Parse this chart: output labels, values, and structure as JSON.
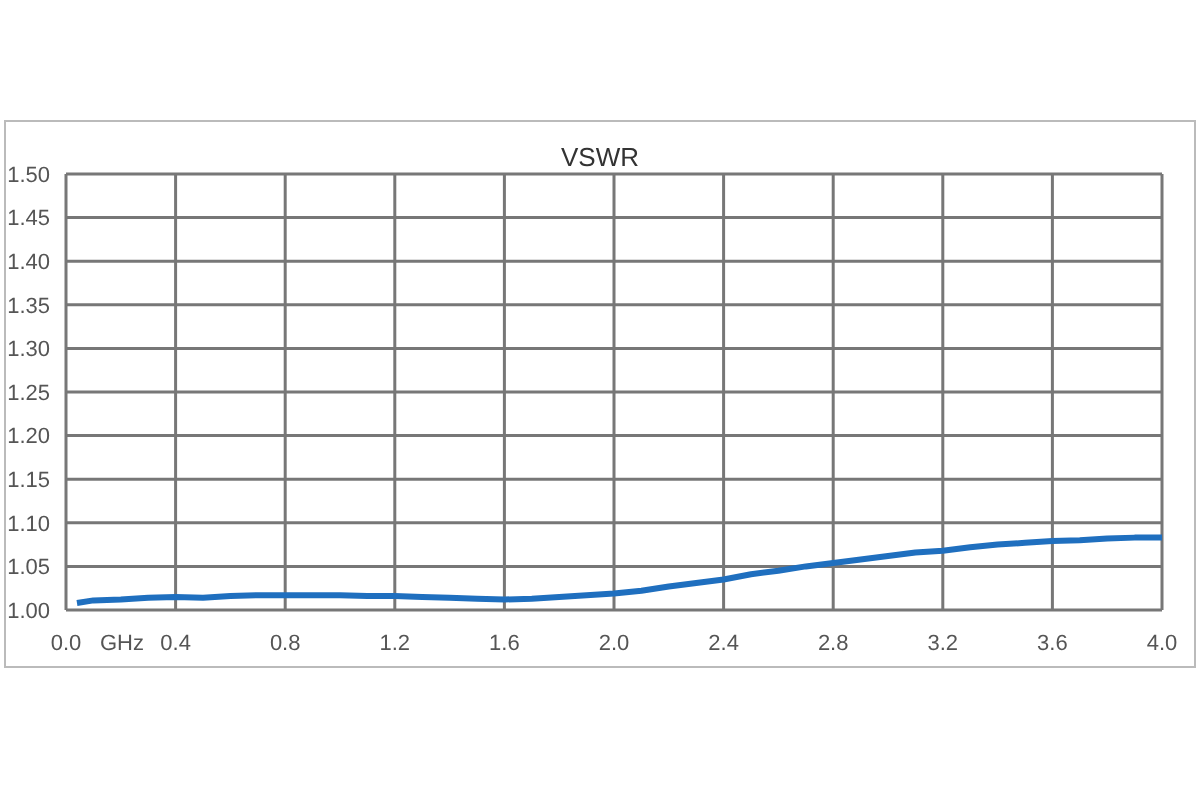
{
  "chart_data": {
    "type": "line",
    "title": "VSWR",
    "xlabel": "GHz",
    "x": [
      0.04,
      0.1,
      0.2,
      0.3,
      0.4,
      0.5,
      0.6,
      0.7,
      0.8,
      0.9,
      1.0,
      1.1,
      1.2,
      1.3,
      1.4,
      1.5,
      1.6,
      1.7,
      1.8,
      1.9,
      2.0,
      2.1,
      2.2,
      2.3,
      2.4,
      2.5,
      2.6,
      2.7,
      2.8,
      2.9,
      3.0,
      3.1,
      3.2,
      3.3,
      3.4,
      3.5,
      3.6,
      3.7,
      3.8,
      3.9,
      4.0
    ],
    "series": [
      {
        "color": "#1f6fbf",
        "values": [
          1.008,
          1.011,
          1.012,
          1.014,
          1.015,
          1.014,
          1.016,
          1.017,
          1.017,
          1.017,
          1.017,
          1.016,
          1.016,
          1.015,
          1.014,
          1.013,
          1.012,
          1.013,
          1.015,
          1.017,
          1.019,
          1.022,
          1.027,
          1.031,
          1.035,
          1.041,
          1.045,
          1.05,
          1.054,
          1.058,
          1.062,
          1.066,
          1.068,
          1.072,
          1.075,
          1.077,
          1.079,
          1.08,
          1.082,
          1.083,
          1.083
        ]
      }
    ],
    "xlim": [
      0,
      4
    ],
    "xticks": [
      {
        "value": 0,
        "label": "0.0"
      },
      0.4,
      0.8,
      1.2,
      1.6,
      {
        "value": 2,
        "label": "2.0"
      },
      2.4,
      2.8,
      3.2,
      3.6,
      {
        "value": 4,
        "label": "4.0"
      }
    ],
    "ylim": [
      1,
      1.5
    ],
    "yticks": [
      {
        "value": 1,
        "label": "1.00"
      },
      {
        "value": 1.05,
        "label": "1.05"
      },
      {
        "value": 1.1,
        "label": "1.10"
      },
      {
        "value": 1.15,
        "label": "1.15"
      },
      {
        "value": 1.2,
        "label": "1.20"
      },
      {
        "value": 1.25,
        "label": "1.25"
      },
      {
        "value": 1.3,
        "label": "1.30"
      },
      {
        "value": 1.35,
        "label": "1.35"
      },
      {
        "value": 1.4,
        "label": "1.40"
      },
      {
        "value": 1.45,
        "label": "1.45"
      },
      {
        "value": 1.5,
        "label": "1.50"
      }
    ],
    "grid": true,
    "legend": false,
    "marker": "none",
    "line_style": "solid"
  }
}
